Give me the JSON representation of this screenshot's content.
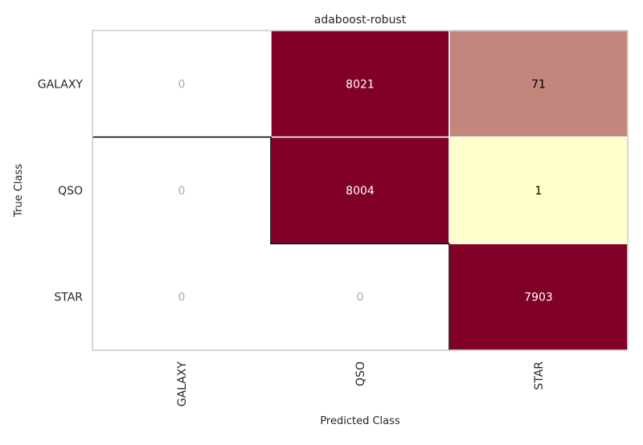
{
  "chart_data": {
    "type": "heatmap",
    "title": "adaboost-robust",
    "xlabel": "Predicted Class",
    "ylabel": "True Class",
    "x_categories": [
      "GALAXY",
      "QSO",
      "STAR"
    ],
    "y_categories": [
      "GALAXY",
      "QSO",
      "STAR"
    ],
    "matrix": [
      [
        0,
        8021,
        71
      ],
      [
        0,
        8004,
        1
      ],
      [
        0,
        0,
        7903
      ]
    ],
    "colors": {
      "high": "#800026",
      "low": "#ffffcc",
      "zero": "#ffffff",
      "text_on_high": "#ffffff",
      "text_on_low": "#000000",
      "text_zero": "#aaaaaa",
      "frame": "#cccccc",
      "diagonal_outline": "#000000"
    }
  }
}
